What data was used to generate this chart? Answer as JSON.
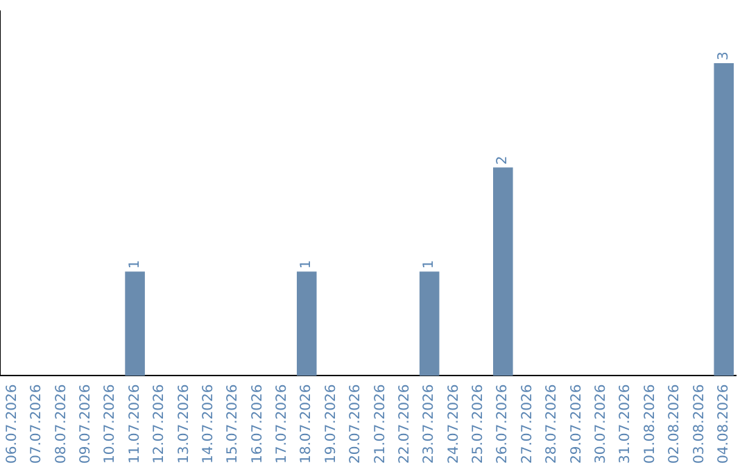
{
  "chart_data": {
    "type": "bar",
    "categories": [
      "06.07.2026",
      "07.07.2026",
      "08.07.2026",
      "09.07.2026",
      "10.07.2026",
      "11.07.2026",
      "12.07.2026",
      "13.07.2026",
      "14.07.2026",
      "15.07.2026",
      "16.07.2026",
      "17.07.2026",
      "18.07.2026",
      "19.07.2026",
      "20.07.2026",
      "21.07.2026",
      "22.07.2026",
      "23.07.2026",
      "24.07.2026",
      "25.07.2026",
      "26.07.2026",
      "27.07.2026",
      "28.07.2026",
      "29.07.2026",
      "30.07.2026",
      "31.07.2026",
      "01.08.2026",
      "02.08.2026",
      "03.08.2026",
      "04.08.2026"
    ],
    "values": [
      0,
      0,
      0,
      0,
      0,
      1,
      0,
      0,
      0,
      0,
      0,
      0,
      1,
      0,
      0,
      0,
      0,
      1,
      0,
      0,
      2,
      0,
      0,
      0,
      0,
      0,
      0,
      0,
      0,
      3
    ],
    "value_labels": [
      null,
      null,
      null,
      null,
      null,
      "1",
      null,
      null,
      null,
      null,
      null,
      null,
      "1",
      null,
      null,
      null,
      null,
      "1",
      null,
      null,
      "2",
      null,
      null,
      null,
      null,
      null,
      null,
      null,
      null,
      "3"
    ],
    "color": "#6a8caf",
    "tick_labels": "x",
    "grid": false,
    "legend": false
  }
}
